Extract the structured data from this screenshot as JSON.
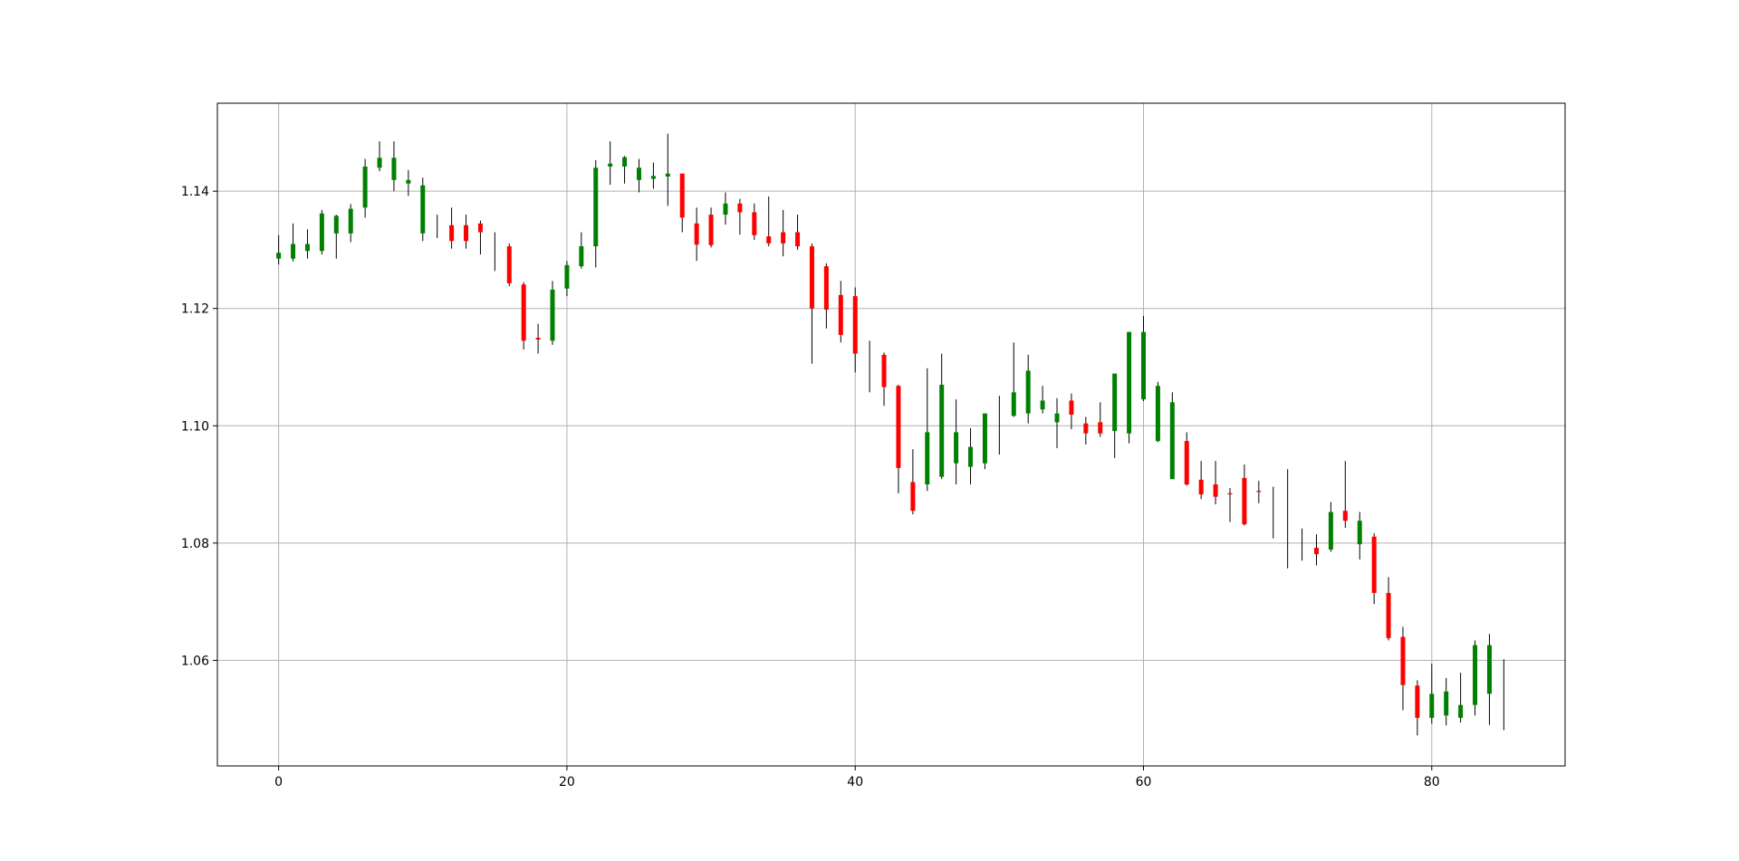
{
  "chart_data": {
    "type": "candlestick",
    "x": [
      0,
      1,
      2,
      3,
      4,
      5,
      6,
      7,
      8,
      9,
      10,
      11,
      12,
      13,
      14,
      15,
      16,
      17,
      18,
      19,
      20,
      21,
      22,
      23,
      24,
      25,
      26,
      27,
      28,
      29,
      30,
      31,
      32,
      33,
      34,
      35,
      36,
      37,
      38,
      39,
      40,
      41,
      42,
      43,
      44,
      45,
      46,
      47,
      48,
      49,
      50,
      51,
      52,
      53,
      54,
      55,
      56,
      57,
      58,
      59,
      60,
      61,
      62,
      63,
      64,
      65,
      66,
      67,
      68,
      69,
      70,
      71,
      72,
      73,
      74,
      75,
      76,
      77,
      78,
      79,
      80,
      81,
      82,
      83,
      84,
      85
    ],
    "open": [
      1.1285,
      1.1285,
      1.1298,
      1.1298,
      1.1328,
      1.1328,
      1.1372,
      1.144,
      1.1419,
      1.1413,
      1.1328,
      1.1335,
      1.1342,
      1.1342,
      1.1345,
      1.131,
      1.1306,
      1.1241,
      1.115,
      1.1145,
      1.1234,
      1.1272,
      1.1306,
      1.1442,
      1.1442,
      1.1419,
      1.1421,
      1.1425,
      1.143,
      1.1345,
      1.136,
      1.136,
      1.1379,
      1.1364,
      1.1323,
      1.133,
      1.133,
      1.1306,
      1.1272,
      1.1223,
      1.1221,
      1.1115,
      1.1121,
      1.1068,
      1.0904,
      1.09,
      1.0913,
      1.0936,
      1.093,
      1.0936,
      1.1,
      1.1017,
      1.1021,
      1.1028,
      1.1006,
      1.1043,
      1.1004,
      1.1006,
      1.0991,
      1.0987,
      1.1045,
      1.0974,
      1.0909,
      1.0974,
      1.0908,
      1.09,
      1.0885,
      1.0911,
      1.0889,
      1.0876,
      1.085,
      1.0805,
      1.0792,
      1.0789,
      1.0855,
      1.0798,
      1.0811,
      1.0715,
      1.064,
      1.0557,
      1.0502,
      1.0506,
      1.0502,
      1.0524,
      1.0543,
      1.055
    ],
    "high": [
      1.1325,
      1.1345,
      1.1335,
      1.1368,
      1.136,
      1.1378,
      1.1455,
      1.1485,
      1.1485,
      1.1436,
      1.1423,
      1.136,
      1.1372,
      1.136,
      1.135,
      1.133,
      1.1311,
      1.1245,
      1.1174,
      1.1247,
      1.1281,
      1.133,
      1.1453,
      1.1485,
      1.146,
      1.1455,
      1.1449,
      1.1498,
      1.143,
      1.1372,
      1.1372,
      1.1398,
      1.1387,
      1.1379,
      1.1391,
      1.1368,
      1.136,
      1.1311,
      1.1277,
      1.1247,
      1.1236,
      1.1145,
      1.1125,
      1.107,
      1.096,
      1.1098,
      1.1123,
      1.1045,
      1.0996,
      1.1021,
      1.1051,
      1.1142,
      1.1121,
      1.1068,
      1.1047,
      1.1055,
      1.1015,
      1.104,
      1.1089,
      1.116,
      1.1187,
      1.1075,
      1.1057,
      1.0989,
      1.094,
      1.094,
      1.0894,
      1.0934,
      1.0906,
      1.0896,
      1.0926,
      1.0825,
      1.0815,
      1.087,
      1.094,
      1.0853,
      1.0817,
      1.0742,
      1.0657,
      1.0566,
      1.0594,
      1.057,
      1.0579,
      1.0634,
      1.0645,
      1.0602
    ],
    "low": [
      1.1275,
      1.128,
      1.1285,
      1.1292,
      1.1285,
      1.1313,
      1.1355,
      1.1434,
      1.14,
      1.1392,
      1.1315,
      1.132,
      1.1302,
      1.1302,
      1.1292,
      1.1264,
      1.1238,
      1.113,
      1.1123,
      1.1138,
      1.1221,
      1.1268,
      1.127,
      1.1411,
      1.1413,
      1.1398,
      1.1404,
      1.1375,
      1.133,
      1.1281,
      1.1304,
      1.1343,
      1.1326,
      1.1317,
      1.1306,
      1.1289,
      1.13,
      1.1106,
      1.1166,
      1.1142,
      1.1091,
      1.1057,
      1.1034,
      1.0885,
      1.0849,
      1.0889,
      1.0909,
      1.09,
      1.09,
      1.0926,
      1.0951,
      1.1015,
      1.1004,
      1.1021,
      1.0962,
      1.0994,
      1.0968,
      1.0981,
      1.0945,
      1.097,
      1.1042,
      1.0972,
      1.0909,
      1.0898,
      1.0875,
      1.0866,
      1.0836,
      1.083,
      1.0868,
      1.0808,
      1.0757,
      1.077,
      1.0762,
      1.0785,
      1.0826,
      1.0772,
      1.0696,
      1.0634,
      1.0515,
      1.0472,
      1.0492,
      1.0489,
      1.0494,
      1.0506,
      1.049,
      1.0481
    ],
    "close": [
      1.1295,
      1.131,
      1.131,
      1.1362,
      1.1358,
      1.137,
      1.1442,
      1.1457,
      1.1457,
      1.1419,
      1.141,
      1.1335,
      1.1315,
      1.1315,
      1.133,
      1.131,
      1.1243,
      1.1145,
      1.1147,
      1.1232,
      1.1274,
      1.1306,
      1.144,
      1.1447,
      1.1458,
      1.144,
      1.1426,
      1.143,
      1.1355,
      1.1309,
      1.1308,
      1.1379,
      1.1364,
      1.1325,
      1.1311,
      1.1311,
      1.1306,
      1.12,
      1.1198,
      1.1155,
      1.1123,
      1.1115,
      1.1066,
      1.0928,
      1.0855,
      1.0989,
      1.107,
      1.0989,
      1.0964,
      1.1021,
      1.1,
      1.1057,
      1.1094,
      1.1043,
      1.1021,
      1.1019,
      1.0987,
      1.0987,
      1.1089,
      1.116,
      1.116,
      1.1068,
      1.104,
      1.09,
      1.0883,
      1.0879,
      1.0883,
      1.0832,
      1.0887,
      1.0876,
      1.085,
      1.0805,
      1.0781,
      1.0853,
      1.0838,
      1.0838,
      1.0715,
      1.0638,
      1.0558,
      1.0502,
      1.0543,
      1.0547,
      1.0524,
      1.0626,
      1.0626,
      1.055
    ],
    "up_color": "#008000",
    "down_color": "#ff0000",
    "wick_color": "#000000",
    "xlim": [
      -4.25,
      89.25
    ],
    "xticks": [
      0,
      20,
      40,
      60,
      80
    ],
    "ylim": [
      1.042,
      1.155
    ],
    "yticks": [
      1.06,
      1.08,
      {
        "value": 1.1,
        "label": "1.10"
      },
      1.12,
      1.14
    ],
    "grid": true
  }
}
